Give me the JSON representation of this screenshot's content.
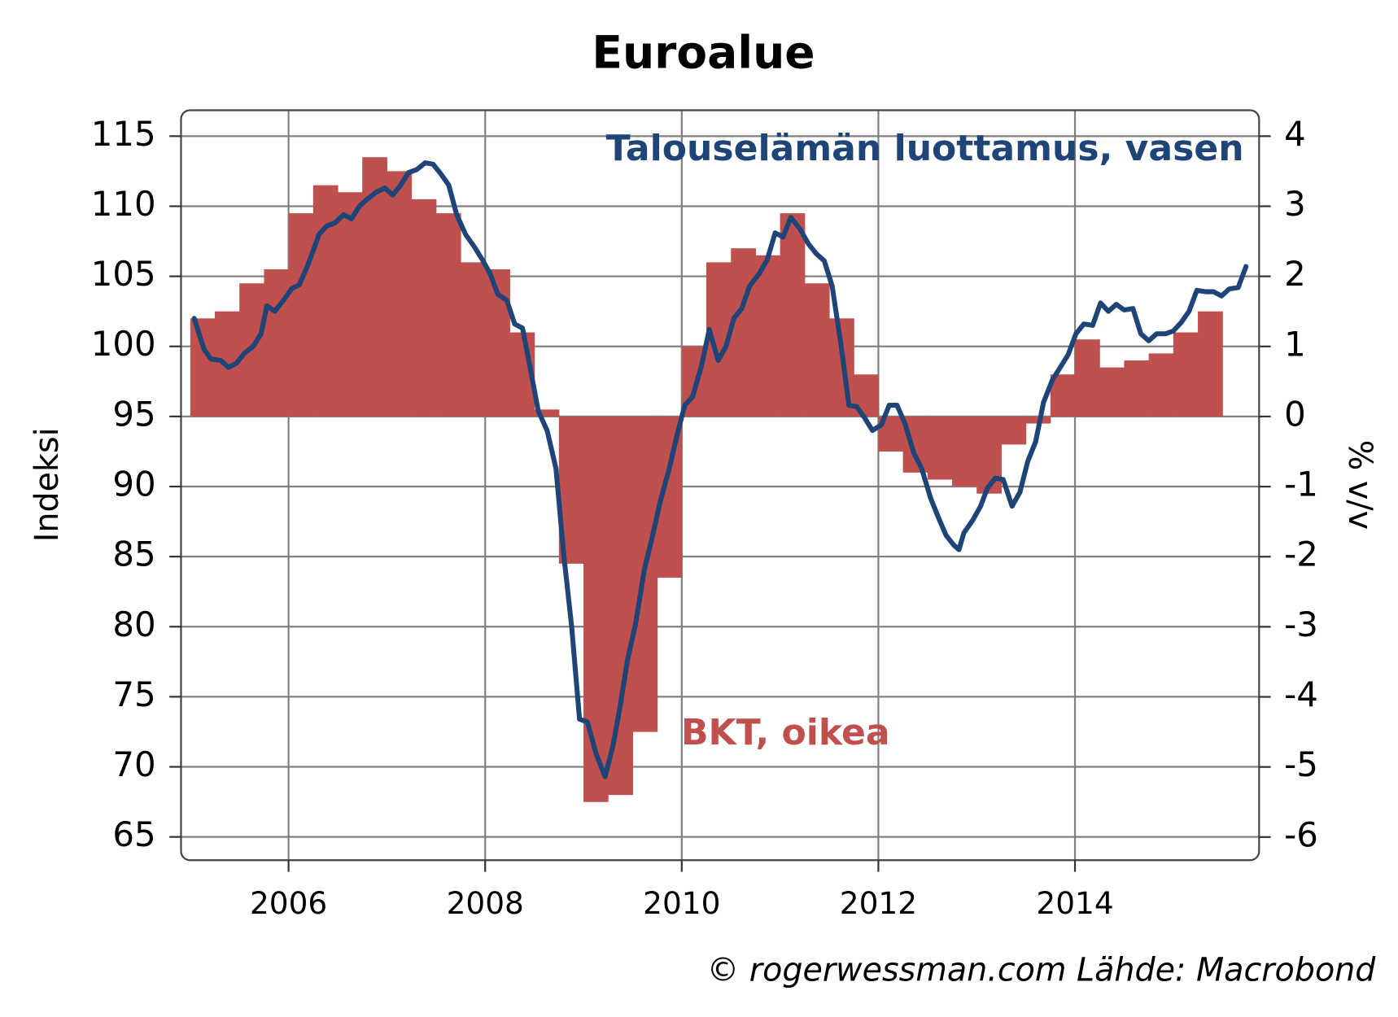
{
  "chart_data": {
    "type": "combo",
    "title": "Euroalue",
    "ylabel": "Indeksi",
    "y2label": "% v/v",
    "source": "© rogerwessman.com Lähde: Macrobond",
    "xlim": [
      2004.906,
      2015.873
    ],
    "xticks": [
      2006,
      2008,
      2010,
      2012,
      2014
    ],
    "ylim": [
      63.34,
      116.85
    ],
    "yticks": [
      65,
      70,
      75,
      80,
      85,
      90,
      95,
      100,
      105,
      110,
      115
    ],
    "y2lim": [
      -6.33,
      4.37
    ],
    "y2ticks": [
      -6,
      -5,
      -4,
      -3,
      -2,
      -1,
      0,
      1,
      2,
      3,
      4
    ],
    "grid": true,
    "series": [
      {
        "name": "BKT, oikea",
        "type": "bar",
        "axis": "y2",
        "color": "#c0504d",
        "x": [
          2005,
          2005.25,
          2005.5,
          2005.75,
          2006,
          2006.25,
          2006.5,
          2006.75,
          2007,
          2007.25,
          2007.5,
          2007.75,
          2008,
          2008.25,
          2008.5,
          2008.75,
          2009,
          2009.25,
          2009.5,
          2009.75,
          2010,
          2010.25,
          2010.5,
          2010.75,
          2011,
          2011.25,
          2011.5,
          2011.75,
          2012,
          2012.25,
          2012.5,
          2012.75,
          2013,
          2013.25,
          2013.5,
          2013.75,
          2014,
          2014.25,
          2014.5,
          2014.75,
          2015,
          2015.25
        ],
        "values": [
          1.4,
          1.5,
          1.9,
          2.1,
          2.9,
          3.3,
          3.2,
          3.7,
          3.5,
          3.1,
          2.9,
          2.2,
          2.1,
          1.2,
          0.1,
          -2.1,
          -5.5,
          -5.4,
          -4.5,
          -2.3,
          1.0,
          2.2,
          2.4,
          2.3,
          2.9,
          1.9,
          1.4,
          0.6,
          -0.5,
          -0.8,
          -0.9,
          -1.0,
          -1.1,
          -0.4,
          -0.1,
          0.6,
          1.1,
          0.7,
          0.8,
          0.9,
          1.2,
          1.5
        ]
      },
      {
        "name": "Talouselämän luottamus, vasen",
        "type": "line",
        "axis": "y",
        "color": "#1f4477",
        "x": [
          2005.04,
          2005.14,
          2005.21,
          2005.31,
          2005.39,
          2005.47,
          2005.55,
          2005.64,
          2005.72,
          2005.78,
          2005.86,
          2005.95,
          2006.03,
          2006.11,
          2006.19,
          2006.26,
          2006.31,
          2006.39,
          2006.47,
          2006.56,
          2006.64,
          2006.72,
          2006.8,
          2006.89,
          2006.98,
          2007.06,
          2007.14,
          2007.22,
          2007.3,
          2007.39,
          2007.47,
          2007.55,
          2007.63,
          2007.71,
          2007.8,
          2007.89,
          2007.97,
          2008.05,
          2008.13,
          2008.22,
          2008.3,
          2008.38,
          2008.46,
          2008.54,
          2008.63,
          2008.72,
          2008.8,
          2008.88,
          2008.96,
          2009.04,
          2009.13,
          2009.22,
          2009.3,
          2009.37,
          2009.45,
          2009.53,
          2009.62,
          2009.7,
          2009.78,
          2009.87,
          2009.95,
          2010.03,
          2010.11,
          2010.2,
          2010.28,
          2010.37,
          2010.45,
          2010.53,
          2010.61,
          2010.69,
          2010.79,
          2010.87,
          2010.95,
          2011.03,
          2011.11,
          2011.2,
          2011.29,
          2011.37,
          2011.45,
          2011.53,
          2011.62,
          2011.7,
          2011.78,
          2011.86,
          2011.94,
          2012.03,
          2012.11,
          2012.19,
          2012.27,
          2012.36,
          2012.44,
          2012.53,
          2012.61,
          2012.69,
          2012.77,
          2012.82,
          2012.87,
          2012.96,
          2013.04,
          2013.11,
          2013.19,
          2013.27,
          2013.36,
          2013.44,
          2013.52,
          2013.6,
          2013.68,
          2013.77,
          2013.85,
          2013.93,
          2014.01,
          2014.09,
          2014.18,
          2014.26,
          2014.34,
          2014.42,
          2014.5,
          2014.59,
          2014.67,
          2014.75,
          2014.83,
          2014.92,
          2015.0,
          2015.08,
          2015.16,
          2015.24,
          2015.33,
          2015.41,
          2015.49,
          2015.57,
          2015.66,
          2015.74
        ],
        "values": [
          102.0,
          99.8,
          99.1,
          99.0,
          98.5,
          98.8,
          99.5,
          100.0,
          100.9,
          102.9,
          102.5,
          103.3,
          104.1,
          104.4,
          105.7,
          107.0,
          108.0,
          108.6,
          108.8,
          109.4,
          109.1,
          110.0,
          110.5,
          111.0,
          111.3,
          110.8,
          111.5,
          112.4,
          112.6,
          113.1,
          113.0,
          112.3,
          111.5,
          109.4,
          108.0,
          107.1,
          106.2,
          105.2,
          103.7,
          103.3,
          101.6,
          101.3,
          98.4,
          95.4,
          94.0,
          91.3,
          85.1,
          80.0,
          73.4,
          73.2,
          70.9,
          69.3,
          71.5,
          74.2,
          77.7,
          80.2,
          84.1,
          86.4,
          88.9,
          91.2,
          93.6,
          95.8,
          96.4,
          98.6,
          101.2,
          99.0,
          100.0,
          102.0,
          102.7,
          104.3,
          105.2,
          106.2,
          108.1,
          107.8,
          109.2,
          108.4,
          107.3,
          106.6,
          106.1,
          104.3,
          100.1,
          95.8,
          95.7,
          94.9,
          94.0,
          94.4,
          95.8,
          95.8,
          94.5,
          92.4,
          91.3,
          89.2,
          87.8,
          86.5,
          85.8,
          85.5,
          86.7,
          87.6,
          88.6,
          89.9,
          90.6,
          90.5,
          88.6,
          89.6,
          91.8,
          93.2,
          96.0,
          97.6,
          98.5,
          99.4,
          100.9,
          101.6,
          101.5,
          103.1,
          102.5,
          103.0,
          102.6,
          102.7,
          100.9,
          100.4,
          100.9,
          100.9,
          101.1,
          101.7,
          102.5,
          104.0,
          103.9,
          103.9,
          103.6,
          104.1,
          104.2,
          105.7
        ]
      }
    ]
  }
}
